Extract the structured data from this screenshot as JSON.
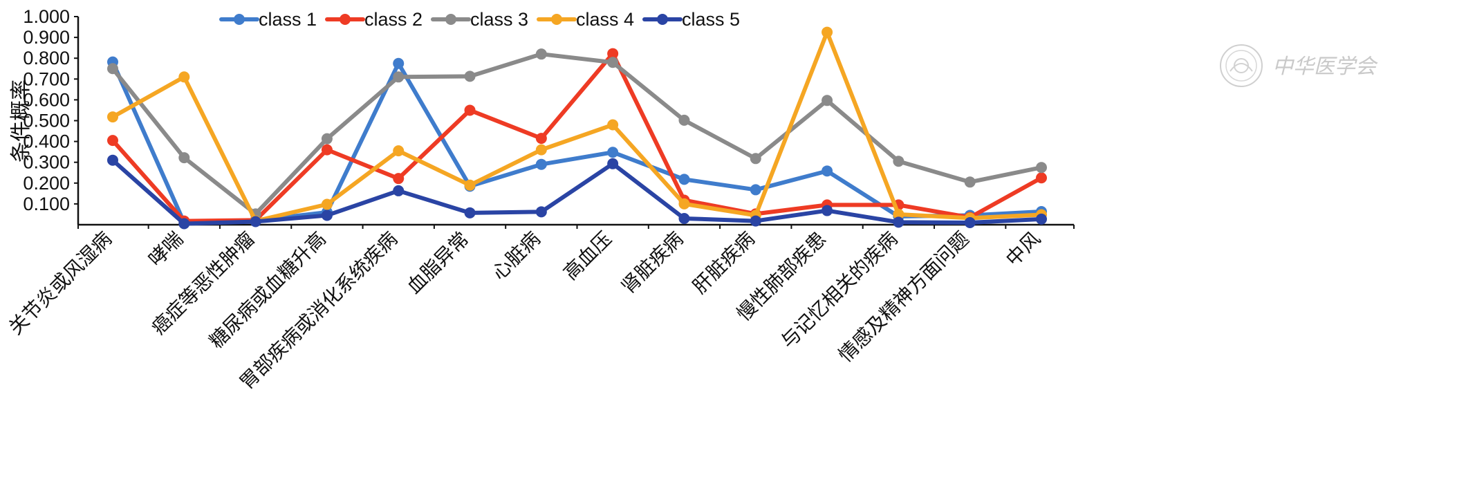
{
  "chart_data": {
    "type": "line",
    "ylabel": "条件概率",
    "ylim": [
      0,
      1.0
    ],
    "yticks": [
      "0.100",
      "0.200",
      "0.300",
      "0.400",
      "0.500",
      "0.600",
      "0.700",
      "0.800",
      "0.900",
      "1.000"
    ],
    "legend_position": "top",
    "grid": false,
    "categories": [
      "关节炎或风湿病",
      "哮喘",
      "癌症等恶性肿瘤",
      "糖尿病或血糖升高",
      "胃部疾病或消化系统疾病",
      "血脂异常",
      "心脏病",
      "高血压",
      "肾脏疾病",
      "肝脏疾病",
      "慢性肺部疾患",
      "与记忆相关的疾病",
      "情感及精神方面问题",
      "中风"
    ],
    "series": [
      {
        "name": "class 1",
        "color": "#3f7ccc",
        "values": [
          0.782,
          0.01,
          0.02,
          0.06,
          0.775,
          0.185,
          0.29,
          0.348,
          0.218,
          0.168,
          0.258,
          0.04,
          0.045,
          0.063
        ]
      },
      {
        "name": "class 2",
        "color": "#ee3b24",
        "values": [
          0.405,
          0.018,
          0.022,
          0.36,
          0.222,
          0.55,
          0.415,
          0.822,
          0.118,
          0.052,
          0.095,
          0.095,
          0.035,
          0.225
        ]
      },
      {
        "name": "class 3",
        "color": "#8a8a8a",
        "values": [
          0.75,
          0.322,
          0.052,
          0.413,
          0.71,
          0.713,
          0.82,
          0.78,
          0.502,
          0.318,
          0.597,
          0.305,
          0.205,
          0.275
        ]
      },
      {
        "name": "class 4",
        "color": "#f5a623",
        "values": [
          0.518,
          0.71,
          0.018,
          0.098,
          0.355,
          0.19,
          0.36,
          0.48,
          0.1,
          0.045,
          0.925,
          0.05,
          0.032,
          0.048
        ]
      },
      {
        "name": "class 5",
        "color": "#2a44a4",
        "values": [
          0.31,
          0.005,
          0.015,
          0.045,
          0.163,
          0.057,
          0.062,
          0.293,
          0.03,
          0.018,
          0.068,
          0.012,
          0.01,
          0.027
        ]
      }
    ]
  },
  "watermark": {
    "text": "中华医学会"
  }
}
